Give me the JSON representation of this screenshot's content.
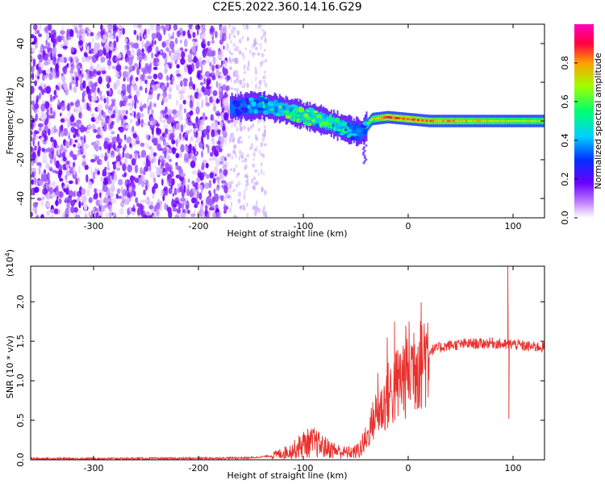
{
  "title": "C2E5.2022.360.14.16.G29",
  "colors": {
    "snr_line": "#e8302c",
    "spectrogram_noise": "#6a00ff",
    "colorbar": [
      "#ffffff",
      "#8000ff",
      "#0000ff",
      "#00ffff",
      "#00ff00",
      "#ffff00",
      "#ff0000",
      "#ff00ff"
    ]
  },
  "chart_data": [
    {
      "type": "heatmap",
      "title": "C2E5.2022.360.14.16.G29",
      "xlabel": "Height of straight line (km)",
      "ylabel": "Frequency (Hz)",
      "xlim": [
        -360,
        130
      ],
      "ylim": [
        -50,
        50
      ],
      "xticks": [
        -300,
        -200,
        -100,
        0,
        100
      ],
      "yticks": [
        -40,
        -20,
        0,
        20,
        40
      ],
      "colorbar": {
        "label": "Normalized spectral amplitude",
        "range": [
          0.0,
          1.0
        ],
        "ticks": [
          "0.0",
          "0.2",
          "0.4",
          "0.6",
          "0.8"
        ]
      },
      "signal_track": {
        "x": [
          -170,
          -140,
          -120,
          -100,
          -80,
          -60,
          -45,
          -35,
          -20,
          0,
          20,
          60,
          100,
          130
        ],
        "frequency": [
          7,
          8,
          6,
          3,
          0,
          -4,
          -6,
          1,
          2,
          1,
          0,
          0,
          0,
          0
        ],
        "amplitude": [
          0.25,
          0.45,
          0.55,
          0.6,
          0.55,
          0.5,
          0.3,
          0.7,
          0.85,
          0.85,
          0.8,
          0.75,
          0.7,
          0.7
        ]
      },
      "noise_region_x": [
        -360,
        -170
      ]
    },
    {
      "type": "line",
      "xlabel": "Height of straight line (km)",
      "ylabel": "SNR (10 * v/v)",
      "multiplier": "(x10^4)",
      "xlim": [
        -360,
        130
      ],
      "ylim": [
        0,
        24500
      ],
      "xticks": [
        -300,
        -200,
        -100,
        0,
        100
      ],
      "yticks": [
        "0.0",
        "0.5",
        "1.0",
        "1.5",
        "2.0"
      ],
      "series": [
        {
          "x": [
            -360,
            -300,
            -200,
            -150,
            -130,
            -110,
            -100,
            -90,
            -80,
            -70,
            -60,
            -50,
            -45,
            -40,
            -35,
            -30,
            -25,
            -20,
            -15,
            -10,
            -5,
            0,
            10,
            20,
            30,
            40,
            50,
            60,
            70,
            80,
            90,
            95,
            100,
            110,
            120,
            130
          ],
          "y": [
            150,
            150,
            180,
            250,
            500,
            1200,
            2000,
            2200,
            1600,
            1200,
            900,
            1000,
            1500,
            2500,
            4500,
            6000,
            6500,
            8000,
            8500,
            9500,
            10500,
            11500,
            13000,
            13800,
            14200,
            14500,
            14600,
            14700,
            14700,
            14800,
            14600,
            14500,
            14700,
            14400,
            14300,
            14300
          ],
          "spikes": [
            [
              -29,
              11000
            ],
            [
              -20,
              15500
            ],
            [
              -13,
              17500
            ],
            [
              95,
              24500
            ],
            [
              96,
              5200
            ]
          ]
        }
      ]
    }
  ]
}
